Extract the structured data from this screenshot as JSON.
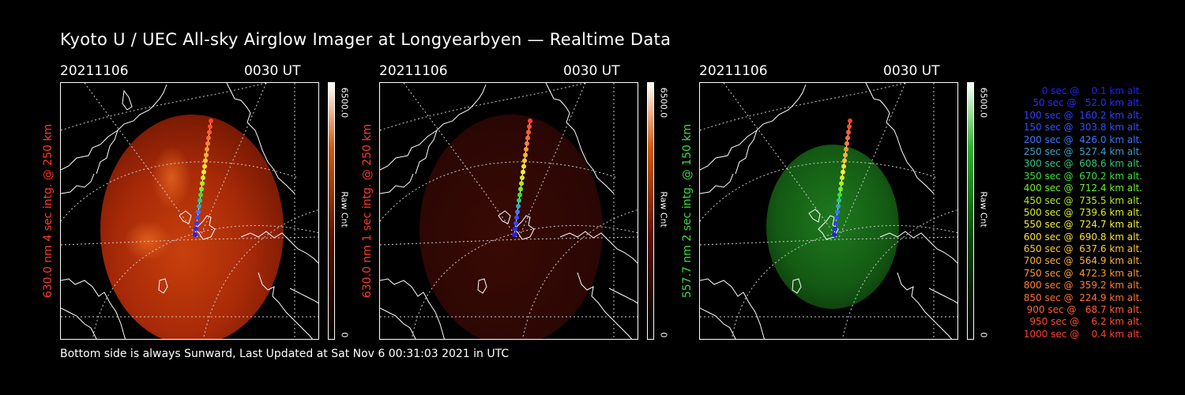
{
  "title": "Kyoto U / UEC All-sky Airglow Imager at Longyearbyen — Realtime Data",
  "footer": "Bottom side is always Sunward, Last Updated at Sat Nov  6 00:31:03 2021 in UTC",
  "panels": [
    {
      "date": "20211106",
      "time": "0030 UT",
      "ylabel": "630.0 nm 4 sec intg. @ 250 km",
      "label_color": "#ff3a2a",
      "colorbar_max": "6500.0",
      "colorbar_min": "0",
      "colorbar_unit": "Raw Cnt",
      "tone": "red-bright"
    },
    {
      "date": "20211106",
      "time": "0030 UT",
      "ylabel": "630.0 nm 1 sec intg. @ 250 km",
      "label_color": "#ff3a2a",
      "colorbar_max": "6500.0",
      "colorbar_min": "0",
      "colorbar_unit": "Raw Cnt",
      "tone": "red-dim"
    },
    {
      "date": "20211106",
      "time": "0030 UT",
      "ylabel": "557.7 nm 2 sec intg. @ 150 km",
      "label_color": "#3cdc3c",
      "colorbar_max": "6500.0",
      "colorbar_min": "0",
      "colorbar_unit": "Raw Cnt",
      "tone": "green"
    }
  ],
  "legend": [
    {
      "text": "0 sec @    0.1 km alt.",
      "color": "#2020ff"
    },
    {
      "text": "50 sec @   52.0 km alt.",
      "color": "#2a2aff"
    },
    {
      "text": "100 sec @  160.2 km alt.",
      "color": "#3040ff"
    },
    {
      "text": "150 sec @  303.8 km alt.",
      "color": "#3050ff"
    },
    {
      "text": "200 sec @  426.0 km alt.",
      "color": "#3a78ff"
    },
    {
      "text": "250 sec @  527.4 km alt.",
      "color": "#3aa0c8"
    },
    {
      "text": "300 sec @  608.6 km alt.",
      "color": "#30c880"
    },
    {
      "text": "350 sec @  670.2 km alt.",
      "color": "#38e038"
    },
    {
      "text": "400 sec @  712.4 km alt.",
      "color": "#6ef028"
    },
    {
      "text": "450 sec @  735.5 km alt.",
      "color": "#a8f020"
    },
    {
      "text": "500 sec @  739.6 km alt.",
      "color": "#d8f020"
    },
    {
      "text": "550 sec @  724.7 km alt.",
      "color": "#f0f030"
    },
    {
      "text": "600 sec @  690.8 km alt.",
      "color": "#ffe030"
    },
    {
      "text": "650 sec @  637.6 km alt.",
      "color": "#ffc830"
    },
    {
      "text": "700 sec @  564.9 km alt.",
      "color": "#ffb030"
    },
    {
      "text": "750 sec @  472.3 km alt.",
      "color": "#ff9830"
    },
    {
      "text": "800 sec @  359.2 km alt.",
      "color": "#ff8030"
    },
    {
      "text": "850 sec @  224.9 km alt.",
      "color": "#ff7030"
    },
    {
      "text": "900 sec @   68.7 km alt.",
      "color": "#ff6030"
    },
    {
      "text": "950 sec @    6.2 km alt.",
      "color": "#ff5030"
    },
    {
      "text": "1000 sec @    0.4 km alt.",
      "color": "#ff4030"
    }
  ]
}
